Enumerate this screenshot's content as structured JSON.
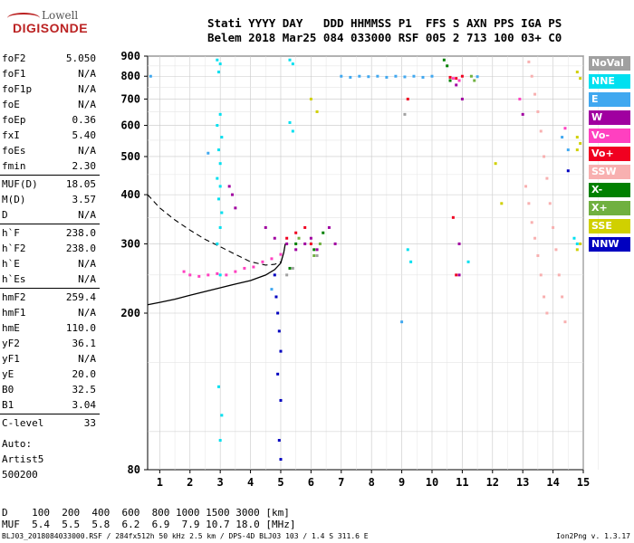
{
  "logo": {
    "line1": "Lowell",
    "line2": "DIGISONDE"
  },
  "header": {
    "line1": "Stati YYYY DAY   DDD HHMMSS P1  FFS S AXN PPS IGA PS",
    "line2": "Belem 2018 Mar25 084 033000 RSF 005 2 713 100 03+ C0"
  },
  "params": [
    {
      "label": "foF2",
      "value": "5.050"
    },
    {
      "label": "foF1",
      "value": "N/A"
    },
    {
      "label": "foF1p",
      "value": "N/A"
    },
    {
      "label": "foE",
      "value": "N/A"
    },
    {
      "label": "foEp",
      "value": "0.36"
    },
    {
      "label": "fxI",
      "value": "5.40"
    },
    {
      "label": "foEs",
      "value": "N/A"
    },
    {
      "label": "fmin",
      "value": "2.30"
    },
    {
      "label": "MUF(D)",
      "value": "18.05"
    },
    {
      "label": "M(D)",
      "value": "3.57"
    },
    {
      "label": "D",
      "value": "N/A"
    },
    {
      "label": "h`F",
      "value": "238.0"
    },
    {
      "label": "h`F2",
      "value": "238.0"
    },
    {
      "label": "h`E",
      "value": "N/A"
    },
    {
      "label": "h`Es",
      "value": "N/A"
    },
    {
      "label": "hmF2",
      "value": "259.4"
    },
    {
      "label": "hmF1",
      "value": "N/A"
    },
    {
      "label": "hmE",
      "value": "110.0"
    },
    {
      "label": "yF2",
      "value": "36.1"
    },
    {
      "label": "yF1",
      "value": "N/A"
    },
    {
      "label": "yE",
      "value": "20.0"
    },
    {
      "label": "B0",
      "value": "32.5"
    },
    {
      "label": "B1",
      "value": "3.04"
    },
    {
      "label": "C-level",
      "value": "33"
    }
  ],
  "auto": {
    "line1": "Auto:",
    "line2": "Artist5",
    "line3": "500200"
  },
  "legend": [
    {
      "label": "NoVal",
      "color": "#a0a0a0"
    },
    {
      "label": "NNE",
      "color": "#00e0f0"
    },
    {
      "label": "E",
      "color": "#40a8f0"
    },
    {
      "label": "W",
      "color": "#a000a0"
    },
    {
      "label": "Vo-",
      "color": "#ff40c0"
    },
    {
      "label": "Vo+",
      "color": "#f00020"
    },
    {
      "label": "SSW",
      "color": "#f8b0b0"
    },
    {
      "label": "X-",
      "color": "#008000"
    },
    {
      "label": "X+",
      "color": "#70b040"
    },
    {
      "label": "SSE",
      "color": "#d0d000"
    },
    {
      "label": "NNW",
      "color": "#0000c0"
    }
  ],
  "muf_table": {
    "d_row": "D    100  200  400  600  800 1000 1500 3000 [km]",
    "muf_row": "MUF  5.4  5.5  5.8  6.2  6.9  7.9 10.7 18.0 [MHz]"
  },
  "footer": {
    "left": "BLJ03_2018084033000.RSF / 284fx512h 50 kHz 2.5 km / DPS-4D BLJ03 103 / 1.4 S 311.6 E",
    "right": "Ion2Png v. 1.3.17"
  },
  "chart_data": {
    "type": "scatter",
    "title": "",
    "xlabel": "",
    "ylabel": "",
    "xlim": [
      0.6,
      15
    ],
    "ylim": [
      80,
      900
    ],
    "x_ticks": [
      1,
      2,
      3,
      4,
      5,
      6,
      7,
      8,
      9,
      10,
      11,
      12,
      13,
      14,
      15
    ],
    "y_ticks": [
      80,
      200,
      300,
      400,
      500,
      600,
      700,
      800,
      900
    ],
    "x_scale": "linear",
    "y_scale": "log",
    "grid": true,
    "legend_position": "right",
    "series": [
      {
        "name": "NNE",
        "color": "#00e0f0",
        "points": [
          [
            2.9,
            880
          ],
          [
            3.0,
            860
          ],
          [
            2.95,
            820
          ],
          [
            3.0,
            640
          ],
          [
            2.9,
            600
          ],
          [
            3.05,
            560
          ],
          [
            2.95,
            520
          ],
          [
            3.0,
            480
          ],
          [
            2.9,
            440
          ],
          [
            3.0,
            420
          ],
          [
            2.95,
            390
          ],
          [
            3.05,
            360
          ],
          [
            3.0,
            330
          ],
          [
            2.9,
            300
          ],
          [
            3.0,
            250
          ],
          [
            2.95,
            130
          ],
          [
            3.05,
            110
          ],
          [
            3.0,
            95
          ],
          [
            5.3,
            880
          ],
          [
            5.4,
            860
          ],
          [
            5.3,
            610
          ],
          [
            5.4,
            580
          ],
          [
            9.2,
            290
          ],
          [
            9.3,
            270
          ],
          [
            11.2,
            270
          ],
          [
            14.7,
            310
          ],
          [
            14.8,
            300
          ]
        ]
      },
      {
        "name": "E",
        "color": "#40a8f0",
        "points": [
          [
            7.0,
            800
          ],
          [
            7.3,
            795
          ],
          [
            7.6,
            800
          ],
          [
            7.9,
            798
          ],
          [
            8.2,
            800
          ],
          [
            8.5,
            795
          ],
          [
            8.8,
            800
          ],
          [
            9.1,
            797
          ],
          [
            9.4,
            800
          ],
          [
            9.7,
            795
          ],
          [
            10.0,
            800
          ],
          [
            11.5,
            798
          ],
          [
            0.7,
            800
          ],
          [
            2.6,
            510
          ],
          [
            4.7,
            230
          ],
          [
            9.0,
            190
          ],
          [
            14.3,
            560
          ],
          [
            14.5,
            520
          ]
        ]
      },
      {
        "name": "W",
        "color": "#a000a0",
        "points": [
          [
            3.3,
            420
          ],
          [
            3.4,
            400
          ],
          [
            3.5,
            370
          ],
          [
            4.5,
            330
          ],
          [
            4.8,
            310
          ],
          [
            5.2,
            300
          ],
          [
            5.5,
            290
          ],
          [
            5.8,
            300
          ],
          [
            6.0,
            310
          ],
          [
            6.2,
            290
          ],
          [
            6.6,
            330
          ],
          [
            6.8,
            300
          ],
          [
            10.8,
            760
          ],
          [
            11.0,
            700
          ],
          [
            13.0,
            640
          ],
          [
            10.9,
            300
          ],
          [
            10.9,
            250
          ]
        ]
      },
      {
        "name": "Vo-",
        "color": "#ff40c0",
        "points": [
          [
            1.8,
            255
          ],
          [
            2.0,
            250
          ],
          [
            2.3,
            248
          ],
          [
            2.6,
            250
          ],
          [
            2.9,
            252
          ],
          [
            3.2,
            250
          ],
          [
            3.5,
            255
          ],
          [
            3.8,
            260
          ],
          [
            4.1,
            262
          ],
          [
            4.4,
            270
          ],
          [
            4.7,
            275
          ],
          [
            5.0,
            282
          ],
          [
            10.7,
            790
          ],
          [
            10.9,
            780
          ],
          [
            12.9,
            700
          ],
          [
            14.4,
            590
          ]
        ]
      },
      {
        "name": "Vo+",
        "color": "#f00020",
        "points": [
          [
            5.2,
            310
          ],
          [
            5.5,
            320
          ],
          [
            5.8,
            330
          ],
          [
            6.0,
            300
          ],
          [
            10.6,
            795
          ],
          [
            10.8,
            790
          ],
          [
            11.0,
            800
          ],
          [
            9.2,
            700
          ],
          [
            10.7,
            350
          ],
          [
            10.8,
            250
          ]
        ]
      },
      {
        "name": "SSW",
        "color": "#f8b0b0",
        "points": [
          [
            13.2,
            870
          ],
          [
            13.3,
            800
          ],
          [
            13.4,
            720
          ],
          [
            13.5,
            650
          ],
          [
            13.6,
            580
          ],
          [
            13.7,
            500
          ],
          [
            13.8,
            440
          ],
          [
            13.9,
            380
          ],
          [
            14.0,
            330
          ],
          [
            14.1,
            290
          ],
          [
            14.2,
            250
          ],
          [
            14.3,
            220
          ],
          [
            14.4,
            190
          ],
          [
            13.1,
            420
          ],
          [
            13.2,
            380
          ],
          [
            13.3,
            340
          ],
          [
            13.4,
            310
          ],
          [
            13.5,
            280
          ],
          [
            13.6,
            250
          ],
          [
            13.7,
            220
          ],
          [
            13.8,
            200
          ]
        ]
      },
      {
        "name": "X-",
        "color": "#008000",
        "points": [
          [
            10.4,
            880
          ],
          [
            10.5,
            850
          ],
          [
            5.5,
            300
          ],
          [
            6.1,
            290
          ],
          [
            6.4,
            320
          ],
          [
            10.6,
            780
          ],
          [
            5.3,
            260
          ]
        ]
      },
      {
        "name": "X+",
        "color": "#70b040",
        "points": [
          [
            6.1,
            280
          ],
          [
            6.3,
            300
          ],
          [
            5.6,
            310
          ],
          [
            11.3,
            800
          ],
          [
            11.4,
            780
          ]
        ]
      },
      {
        "name": "SSE",
        "color": "#d0d000",
        "points": [
          [
            14.8,
            820
          ],
          [
            14.9,
            790
          ],
          [
            14.8,
            560
          ],
          [
            14.9,
            540
          ],
          [
            14.8,
            520
          ],
          [
            14.9,
            300
          ],
          [
            14.8,
            290
          ],
          [
            6.0,
            700
          ],
          [
            6.2,
            650
          ],
          [
            12.1,
            480
          ],
          [
            12.3,
            380
          ]
        ]
      },
      {
        "name": "NNW",
        "color": "#0000c0",
        "points": [
          [
            4.8,
            250
          ],
          [
            4.85,
            220
          ],
          [
            4.9,
            200
          ],
          [
            4.95,
            180
          ],
          [
            5.0,
            160
          ],
          [
            4.9,
            140
          ],
          [
            5.0,
            120
          ],
          [
            4.95,
            95
          ],
          [
            5.0,
            85
          ],
          [
            14.5,
            460
          ]
        ]
      },
      {
        "name": "NoVal",
        "color": "#a0a0a0",
        "points": [
          [
            5.2,
            250
          ],
          [
            5.4,
            260
          ],
          [
            6.2,
            280
          ],
          [
            9.1,
            640
          ]
        ]
      }
    ],
    "virtual_height_trace": [
      [
        0.6,
        210
      ],
      [
        1.0,
        213
      ],
      [
        1.5,
        217
      ],
      [
        2.0,
        222
      ],
      [
        2.5,
        227
      ],
      [
        3.0,
        232
      ],
      [
        3.5,
        237
      ],
      [
        4.0,
        242
      ],
      [
        4.5,
        250
      ],
      [
        4.8,
        258
      ],
      [
        5.0,
        268
      ],
      [
        5.1,
        285
      ],
      [
        5.15,
        300
      ]
    ],
    "profile_trace": [
      [
        0.6,
        400
      ],
      [
        1.0,
        370
      ],
      [
        1.5,
        345
      ],
      [
        2.0,
        325
      ],
      [
        2.5,
        308
      ],
      [
        3.0,
        295
      ],
      [
        3.5,
        282
      ],
      [
        4.0,
        270
      ],
      [
        4.5,
        265
      ],
      [
        4.8,
        266
      ],
      [
        5.0,
        270
      ]
    ]
  }
}
